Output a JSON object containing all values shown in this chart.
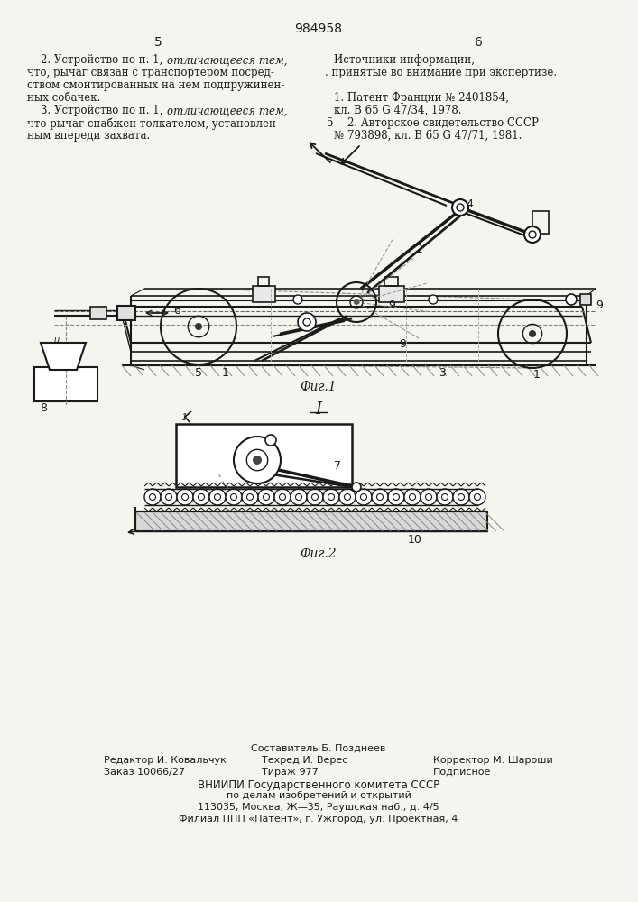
{
  "patent_number": "984958",
  "page_left": "5",
  "page_right": "6",
  "bg_color": "#f5f5f0",
  "text_color": "#1a1a1a",
  "line_color": "#1a1a1a",
  "fig1_caption": "Фиг.1",
  "fig2_caption": "Фиг.2",
  "fig2_section_label": "I",
  "footer_lines": [
    "Составитель Б. Позднеев",
    "Редактор И. Ковальчук",
    "Техред И. Верес",
    "Корректор М. Шароши",
    "Заказ 10066/27",
    "Тираж 977",
    "Подписное",
    "ВНИИПИ Государственного комитета СССР",
    "по делам изобретений и открытий",
    "113035, Москва, Ж—35, Раушская наб., д. 4/5",
    "Филиал ППП «Патент», г. Ужгород, ул. Проектная, 4"
  ]
}
